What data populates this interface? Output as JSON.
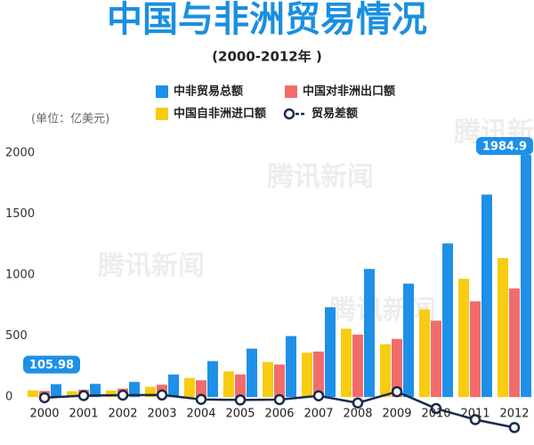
{
  "chart_data": {
    "type": "bar",
    "title": "中国与非洲贸易情况",
    "subtitle": "(2000-2012年 )",
    "unit_label": "(单位：亿美元)",
    "watermark": "腾讯新闻",
    "categories": [
      "2000",
      "2001",
      "2002",
      "2003",
      "2004",
      "2005",
      "2006",
      "2007",
      "2008",
      "2009",
      "2010",
      "2011",
      "2012"
    ],
    "series": [
      {
        "name": "中国自非洲进口额",
        "color": "#f8cc10",
        "type": "bar",
        "values": [
          55,
          48,
          54,
          84,
          157,
          210,
          288,
          363,
          560,
          433,
          720,
          970,
          1140
        ]
      },
      {
        "name": "中国对非洲出口额",
        "color": "#f26c6c",
        "type": "bar",
        "values": [
          50,
          60,
          70,
          101,
          138,
          186,
          267,
          373,
          512,
          477,
          626,
          785,
          890
        ]
      },
      {
        "name": "中非贸易总额",
        "color": "#1e90e8",
        "type": "bar",
        "values": [
          105.98,
          108,
          124,
          185,
          295,
          397,
          500,
          736,
          1050,
          930,
          1260,
          1660,
          1984.9
        ]
      },
      {
        "name": "贸易差额",
        "color": "#1a2a4a",
        "type": "line",
        "values": [
          -5,
          12,
          16,
          17,
          -19,
          -24,
          -21,
          10,
          -48,
          44,
          -94,
          -185,
          -250
        ]
      }
    ],
    "ylim": [
      -320,
      2000
    ],
    "yticks": [
      0,
      500,
      1000,
      1500,
      2000
    ],
    "grid": false
  }
}
